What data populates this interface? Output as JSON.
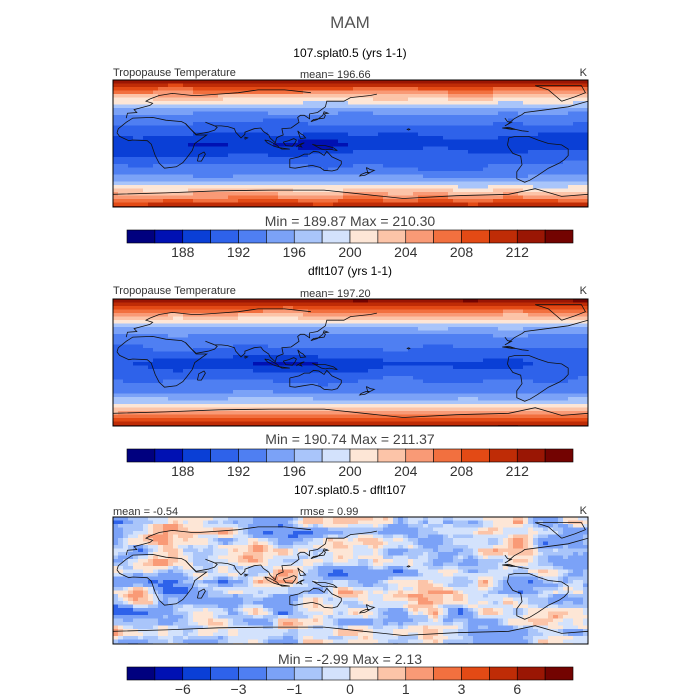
{
  "page_title": "MAM",
  "chart_data": [
    {
      "type": "heatmap",
      "title": "107.splat0.5 (yrs 1-1)",
      "variable": "Tropopause Temperature",
      "units": "K",
      "mean_text": "mean= 196.66",
      "minmax_text": "Min = 189.87 Max = 210.30",
      "min": 189.87,
      "max": 210.3,
      "mean": 196.66,
      "colorbar": {
        "levels": [
          186,
          188,
          190,
          192,
          194,
          196,
          198,
          200,
          202,
          204,
          206,
          208,
          210,
          212,
          214,
          216
        ],
        "tick_labels": [
          "188",
          "192",
          "196",
          "200",
          "204",
          "208",
          "212"
        ]
      }
    },
    {
      "type": "heatmap",
      "title": "dflt107 (yrs 1-1)",
      "variable": "Tropopause Temperature",
      "units": "K",
      "mean_text": "mean= 197.20",
      "minmax_text": "Min = 190.74 Max = 211.37",
      "min": 190.74,
      "max": 211.37,
      "mean": 197.2,
      "colorbar": {
        "levels": [
          186,
          188,
          190,
          192,
          194,
          196,
          198,
          200,
          202,
          204,
          206,
          208,
          210,
          212,
          214,
          216
        ],
        "tick_labels": [
          "188",
          "192",
          "196",
          "200",
          "204",
          "208",
          "212"
        ]
      }
    },
    {
      "type": "heatmap",
      "title": "107.splat0.5 - dflt107",
      "variable": "",
      "units": "K",
      "mean_text": "mean = -0.54",
      "rmse_text": "rmse = 0.99",
      "minmax_text": "Min = -2.99 Max = 2.13",
      "min": -2.99,
      "max": 2.13,
      "mean": -0.54,
      "rmse": 0.99,
      "colorbar": {
        "levels": [
          -8,
          -6,
          -4,
          -3,
          -2,
          -1,
          -0.5,
          0,
          0.5,
          1,
          2,
          3,
          4,
          6,
          8
        ],
        "tick_labels": [
          "-6",
          "-3",
          "-1",
          "0",
          "1",
          "3",
          "6"
        ]
      }
    }
  ],
  "palette": [
    "#00007f",
    "#0011b3",
    "#0a3fd6",
    "#2e62ea",
    "#4f7ff2",
    "#7ba2f7",
    "#a9c5fa",
    "#d3e2fc",
    "#fde6d6",
    "#fcc4a8",
    "#f99a76",
    "#f2703f",
    "#e34a15",
    "#bf2c06",
    "#9a1604",
    "#730301"
  ]
}
